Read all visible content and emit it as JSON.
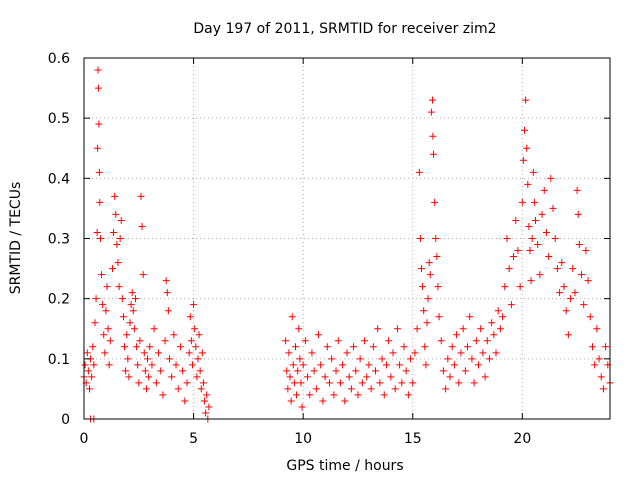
{
  "chart_data": {
    "type": "scatter",
    "title": "Day 197 of 2011, SRMTID for receiver zim2",
    "xlabel": "GPS time / hours",
    "ylabel": "SRMTID / TECUs",
    "xlim": [
      0,
      24
    ],
    "ylim": [
      0,
      0.6
    ],
    "xticks": [
      0,
      5,
      10,
      15,
      20
    ],
    "xtick_labels": [
      "0",
      "5",
      "10",
      "15",
      "20"
    ],
    "yticks": [
      0,
      0.1,
      0.2,
      0.3,
      0.4,
      0.5,
      0.6
    ],
    "ytick_labels": [
      "0",
      "0.1",
      "0.2",
      "0.3",
      "0.4",
      "0.5",
      "0.6"
    ],
    "grid": true,
    "marker": "+",
    "color": "#ff0000",
    "series": [
      {
        "name": "SRMTID",
        "points": [
          [
            0.0,
            0.07
          ],
          [
            0.05,
            0.09
          ],
          [
            0.1,
            0.06
          ],
          [
            0.15,
            0.11
          ],
          [
            0.2,
            0.08
          ],
          [
            0.25,
            0.05
          ],
          [
            0.3,
            0.1
          ],
          [
            0.35,
            0.07
          ],
          [
            0.4,
            0.12
          ],
          [
            0.45,
            0.09
          ],
          [
            0.3,
            0.0
          ],
          [
            0.45,
            0.0
          ],
          [
            0.5,
            0.16
          ],
          [
            0.55,
            0.2
          ],
          [
            0.6,
            0.31
          ],
          [
            0.62,
            0.45
          ],
          [
            0.64,
            0.58
          ],
          [
            0.66,
            0.55
          ],
          [
            0.68,
            0.49
          ],
          [
            0.7,
            0.41
          ],
          [
            0.72,
            0.36
          ],
          [
            0.75,
            0.3
          ],
          [
            0.8,
            0.24
          ],
          [
            0.85,
            0.19
          ],
          [
            0.9,
            0.14
          ],
          [
            0.95,
            0.11
          ],
          [
            1.0,
            0.18
          ],
          [
            1.05,
            0.22
          ],
          [
            1.1,
            0.15
          ],
          [
            1.15,
            0.09
          ],
          [
            1.2,
            0.13
          ],
          [
            1.3,
            0.25
          ],
          [
            1.35,
            0.31
          ],
          [
            1.4,
            0.37
          ],
          [
            1.45,
            0.34
          ],
          [
            1.5,
            0.29
          ],
          [
            1.55,
            0.26
          ],
          [
            1.6,
            0.22
          ],
          [
            1.65,
            0.3
          ],
          [
            1.7,
            0.33
          ],
          [
            1.75,
            0.2
          ],
          [
            1.8,
            0.17
          ],
          [
            1.85,
            0.12
          ],
          [
            1.9,
            0.08
          ],
          [
            1.95,
            0.14
          ],
          [
            2.0,
            0.1
          ],
          [
            2.05,
            0.07
          ],
          [
            2.1,
            0.16
          ],
          [
            2.15,
            0.19
          ],
          [
            2.2,
            0.21
          ],
          [
            2.25,
            0.18
          ],
          [
            2.3,
            0.15
          ],
          [
            2.35,
            0.2
          ],
          [
            2.4,
            0.12
          ],
          [
            2.45,
            0.09
          ],
          [
            2.5,
            0.06
          ],
          [
            2.55,
            0.13
          ],
          [
            2.6,
            0.37
          ],
          [
            2.65,
            0.32
          ],
          [
            2.7,
            0.24
          ],
          [
            2.75,
            0.11
          ],
          [
            2.8,
            0.08
          ],
          [
            2.85,
            0.05
          ],
          [
            2.9,
            0.1
          ],
          [
            2.95,
            0.07
          ],
          [
            3.0,
            0.12
          ],
          [
            3.1,
            0.09
          ],
          [
            3.2,
            0.15
          ],
          [
            3.3,
            0.06
          ],
          [
            3.4,
            0.11
          ],
          [
            3.5,
            0.08
          ],
          [
            3.6,
            0.04
          ],
          [
            3.7,
            0.13
          ],
          [
            3.75,
            0.23
          ],
          [
            3.8,
            0.21
          ],
          [
            3.85,
            0.18
          ],
          [
            3.9,
            0.1
          ],
          [
            4.0,
            0.07
          ],
          [
            4.1,
            0.14
          ],
          [
            4.2,
            0.09
          ],
          [
            4.3,
            0.05
          ],
          [
            4.4,
            0.12
          ],
          [
            4.5,
            0.08
          ],
          [
            4.6,
            0.03
          ],
          [
            4.7,
            0.06
          ],
          [
            4.8,
            0.11
          ],
          [
            4.85,
            0.17
          ],
          [
            4.9,
            0.13
          ],
          [
            4.95,
            0.09
          ],
          [
            5.0,
            0.19
          ],
          [
            5.05,
            0.15
          ],
          [
            5.1,
            0.12
          ],
          [
            5.15,
            0.07
          ],
          [
            5.2,
            0.1
          ],
          [
            5.25,
            0.14
          ],
          [
            5.3,
            0.08
          ],
          [
            5.35,
            0.05
          ],
          [
            5.4,
            0.11
          ],
          [
            5.45,
            0.06
          ],
          [
            5.5,
            0.03
          ],
          [
            5.55,
            0.01
          ],
          [
            5.6,
            0.04
          ],
          [
            5.65,
            0.0
          ],
          [
            5.7,
            0.02
          ],
          [
            9.2,
            0.13
          ],
          [
            9.25,
            0.08
          ],
          [
            9.3,
            0.05
          ],
          [
            9.35,
            0.11
          ],
          [
            9.4,
            0.07
          ],
          [
            9.45,
            0.03
          ],
          [
            9.5,
            0.17
          ],
          [
            9.55,
            0.09
          ],
          [
            9.6,
            0.06
          ],
          [
            9.65,
            0.12
          ],
          [
            9.7,
            0.04
          ],
          [
            9.75,
            0.08
          ],
          [
            9.8,
            0.15
          ],
          [
            9.85,
            0.1
          ],
          [
            9.9,
            0.06
          ],
          [
            9.95,
            0.02
          ],
          [
            10.0,
            0.09
          ],
          [
            10.1,
            0.13
          ],
          [
            10.2,
            0.07
          ],
          [
            10.3,
            0.04
          ],
          [
            10.4,
            0.11
          ],
          [
            10.5,
            0.08
          ],
          [
            10.6,
            0.05
          ],
          [
            10.7,
            0.14
          ],
          [
            10.8,
            0.09
          ],
          [
            10.9,
            0.03
          ],
          [
            11.0,
            0.07
          ],
          [
            11.1,
            0.12
          ],
          [
            11.2,
            0.06
          ],
          [
            11.3,
            0.1
          ],
          [
            11.4,
            0.04
          ],
          [
            11.5,
            0.08
          ],
          [
            11.6,
            0.13
          ],
          [
            11.7,
            0.06
          ],
          [
            11.8,
            0.09
          ],
          [
            11.9,
            0.03
          ],
          [
            12.0,
            0.11
          ],
          [
            12.1,
            0.07
          ],
          [
            12.2,
            0.05
          ],
          [
            12.3,
            0.12
          ],
          [
            12.4,
            0.08
          ],
          [
            12.5,
            0.04
          ],
          [
            12.6,
            0.1
          ],
          [
            12.7,
            0.06
          ],
          [
            12.8,
            0.13
          ],
          [
            12.9,
            0.07
          ],
          [
            13.0,
            0.09
          ],
          [
            13.1,
            0.05
          ],
          [
            13.2,
            0.12
          ],
          [
            13.3,
            0.08
          ],
          [
            13.4,
            0.15
          ],
          [
            13.5,
            0.06
          ],
          [
            13.6,
            0.1
          ],
          [
            13.7,
            0.04
          ],
          [
            13.8,
            0.09
          ],
          [
            13.9,
            0.13
          ],
          [
            14.0,
            0.07
          ],
          [
            14.1,
            0.11
          ],
          [
            14.2,
            0.05
          ],
          [
            14.3,
            0.15
          ],
          [
            14.4,
            0.09
          ],
          [
            14.5,
            0.06
          ],
          [
            14.6,
            0.12
          ],
          [
            14.7,
            0.08
          ],
          [
            14.8,
            0.04
          ],
          [
            14.9,
            0.1
          ],
          [
            15.0,
            0.06
          ],
          [
            15.1,
            0.11
          ],
          [
            15.2,
            0.15
          ],
          [
            15.3,
            0.41
          ],
          [
            15.35,
            0.3
          ],
          [
            15.4,
            0.25
          ],
          [
            15.45,
            0.22
          ],
          [
            15.5,
            0.18
          ],
          [
            15.55,
            0.12
          ],
          [
            15.6,
            0.09
          ],
          [
            15.65,
            0.16
          ],
          [
            15.7,
            0.2
          ],
          [
            15.75,
            0.26
          ],
          [
            15.8,
            0.24
          ],
          [
            15.85,
            0.51
          ],
          [
            15.9,
            0.53
          ],
          [
            15.92,
            0.47
          ],
          [
            15.95,
            0.44
          ],
          [
            16.0,
            0.36
          ],
          [
            16.05,
            0.3
          ],
          [
            16.1,
            0.27
          ],
          [
            16.15,
            0.22
          ],
          [
            16.2,
            0.17
          ],
          [
            16.3,
            0.13
          ],
          [
            16.4,
            0.08
          ],
          [
            16.5,
            0.05
          ],
          [
            16.6,
            0.1
          ],
          [
            16.7,
            0.07
          ],
          [
            16.8,
            0.12
          ],
          [
            16.9,
            0.09
          ],
          [
            17.0,
            0.14
          ],
          [
            17.1,
            0.06
          ],
          [
            17.2,
            0.11
          ],
          [
            17.3,
            0.15
          ],
          [
            17.4,
            0.08
          ],
          [
            17.5,
            0.12
          ],
          [
            17.6,
            0.17
          ],
          [
            17.7,
            0.1
          ],
          [
            17.8,
            0.06
          ],
          [
            17.9,
            0.13
          ],
          [
            18.0,
            0.09
          ],
          [
            18.1,
            0.15
          ],
          [
            18.2,
            0.11
          ],
          [
            18.3,
            0.07
          ],
          [
            18.4,
            0.13
          ],
          [
            18.5,
            0.1
          ],
          [
            18.6,
            0.16
          ],
          [
            18.7,
            0.14
          ],
          [
            18.8,
            0.11
          ],
          [
            18.9,
            0.18
          ],
          [
            19.0,
            0.15
          ],
          [
            19.1,
            0.17
          ],
          [
            19.2,
            0.22
          ],
          [
            19.3,
            0.3
          ],
          [
            19.4,
            0.25
          ],
          [
            19.5,
            0.19
          ],
          [
            19.6,
            0.27
          ],
          [
            19.7,
            0.33
          ],
          [
            19.8,
            0.28
          ],
          [
            19.9,
            0.22
          ],
          [
            20.0,
            0.36
          ],
          [
            20.05,
            0.43
          ],
          [
            20.1,
            0.48
          ],
          [
            20.15,
            0.53
          ],
          [
            20.2,
            0.45
          ],
          [
            20.25,
            0.39
          ],
          [
            20.3,
            0.32
          ],
          [
            20.35,
            0.28
          ],
          [
            20.4,
            0.23
          ],
          [
            20.45,
            0.3
          ],
          [
            20.5,
            0.41
          ],
          [
            20.55,
            0.36
          ],
          [
            20.6,
            0.33
          ],
          [
            20.7,
            0.29
          ],
          [
            20.8,
            0.24
          ],
          [
            20.9,
            0.34
          ],
          [
            21.0,
            0.38
          ],
          [
            21.1,
            0.31
          ],
          [
            21.2,
            0.27
          ],
          [
            21.3,
            0.4
          ],
          [
            21.4,
            0.35
          ],
          [
            21.5,
            0.3
          ],
          [
            21.6,
            0.25
          ],
          [
            21.7,
            0.21
          ],
          [
            21.8,
            0.26
          ],
          [
            21.9,
            0.22
          ],
          [
            22.0,
            0.18
          ],
          [
            22.1,
            0.14
          ],
          [
            22.2,
            0.2
          ],
          [
            22.3,
            0.25
          ],
          [
            22.4,
            0.21
          ],
          [
            22.5,
            0.38
          ],
          [
            22.55,
            0.34
          ],
          [
            22.6,
            0.29
          ],
          [
            22.7,
            0.24
          ],
          [
            22.8,
            0.19
          ],
          [
            22.9,
            0.28
          ],
          [
            23.0,
            0.23
          ],
          [
            23.1,
            0.17
          ],
          [
            23.2,
            0.12
          ],
          [
            23.3,
            0.09
          ],
          [
            23.4,
            0.15
          ],
          [
            23.5,
            0.1
          ],
          [
            23.6,
            0.07
          ],
          [
            23.7,
            0.05
          ],
          [
            23.8,
            0.12
          ],
          [
            23.9,
            0.09
          ],
          [
            24.0,
            0.06
          ]
        ]
      }
    ]
  }
}
